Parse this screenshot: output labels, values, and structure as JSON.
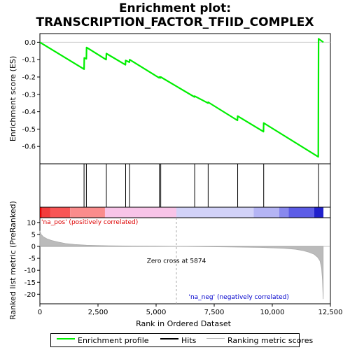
{
  "chart_data": {
    "type": "line",
    "title_line1": "Enrichment plot:",
    "title_line2": "TRANSCRIPTION_FACTOR_TFIID_COMPLEX",
    "top_panel": {
      "ylabel": "Enrichment score (ES)",
      "ylim": [
        -0.7,
        0.05
      ],
      "yticks": [
        0.0,
        -0.1,
        -0.2,
        -0.3,
        -0.4,
        -0.5,
        -0.6
      ],
      "ytick_labels": [
        "0.0",
        "-0.1",
        "-0.2",
        "-0.3",
        "-0.4",
        "-0.5",
        "-0.6"
      ],
      "series": [
        {
          "color": "#00ee00",
          "x": [
            0,
            1900,
            1910,
            2000,
            2010,
            2850,
            2860,
            3680,
            3690,
            3850,
            3860,
            5130,
            5140,
            5190,
            5200,
            6650,
            6660,
            7230,
            7240,
            8500,
            8510,
            9620,
            9630,
            11980,
            11990,
            12200
          ],
          "y": [
            0.0,
            -0.155,
            -0.09,
            -0.095,
            -0.03,
            -0.1,
            -0.065,
            -0.13,
            -0.105,
            -0.115,
            -0.1,
            -0.205,
            -0.2,
            -0.205,
            -0.2,
            -0.315,
            -0.31,
            -0.35,
            -0.345,
            -0.45,
            -0.425,
            -0.515,
            -0.465,
            -0.66,
            0.02,
            0.0
          ]
        }
      ]
    },
    "hits": [
      1900,
      2000,
      2860,
      3690,
      3860,
      5140,
      5200,
      6660,
      7240,
      8510,
      9630,
      11990
    ],
    "bottom_panel": {
      "ylabel": "Ranked list metric (PreRanked)",
      "xlabel": "Rank in Ordered Dataset",
      "ylim": [
        -24,
        12
      ],
      "yticks": [
        10,
        5,
        0,
        -5,
        -10,
        -15,
        -20
      ],
      "ytick_labels": [
        "10",
        "5",
        "0",
        "-5",
        "-10",
        "-15",
        "-20"
      ],
      "xlim": [
        0,
        12500
      ],
      "xticks": [
        0,
        2500,
        5000,
        7500,
        10000,
        12500
      ],
      "xtick_labels": [
        "0",
        "2,500",
        "5,000",
        "7,500",
        "10,000",
        "12,500"
      ],
      "metric_x": [
        0,
        50,
        150,
        300,
        500,
        800,
        1100,
        1500,
        2000,
        2500,
        3000,
        4000,
        5000,
        5874,
        7000,
        8000,
        9000,
        9500,
        10000,
        10500,
        11000,
        11300,
        11600,
        11800,
        11950,
        12050,
        12120,
        12160,
        12190
      ],
      "metric_y": [
        6.5,
        5.0,
        4.0,
        3.2,
        2.5,
        1.8,
        1.2,
        0.8,
        0.5,
        0.35,
        0.25,
        0.15,
        0.08,
        0.0,
        -0.1,
        -0.2,
        -0.35,
        -0.45,
        -0.6,
        -0.8,
        -1.2,
        -1.7,
        -2.5,
        -3.3,
        -4.5,
        -6.0,
        -9.0,
        -14.0,
        -22.0
      ],
      "zero_cross": 5874,
      "zero_cross_label": "Zero cross at 5874",
      "pos_label": "'na_pos' (positively correlated)",
      "neg_label": "'na_neg' (negatively correlated)",
      "pos_color": "#dd0000",
      "neg_color": "#0000cc"
    },
    "colorbar": {
      "segments": [
        {
          "from": 0,
          "to": 80,
          "color": "#e00000"
        },
        {
          "from": 80,
          "to": 450,
          "color": "#f23c3c"
        },
        {
          "from": 450,
          "to": 1300,
          "color": "#f85656"
        },
        {
          "from": 1300,
          "to": 2800,
          "color": "#fa8c8c"
        },
        {
          "from": 2800,
          "to": 5874,
          "color": "#f8c4e8"
        },
        {
          "from": 5874,
          "to": 9200,
          "color": "#d2d2f8"
        },
        {
          "from": 9200,
          "to": 10300,
          "color": "#b4b4f4"
        },
        {
          "from": 10300,
          "to": 10700,
          "color": "#8888ee"
        },
        {
          "from": 10700,
          "to": 11800,
          "color": "#5c5ce6"
        },
        {
          "from": 11800,
          "to": 12200,
          "color": "#2020cc"
        }
      ]
    },
    "legend": [
      {
        "label": "Enrichment profile",
        "color": "#00ee00"
      },
      {
        "label": "Hits",
        "color": "#000000"
      },
      {
        "label": "Ranking metric scores",
        "color": "#bbbbbb"
      }
    ]
  }
}
